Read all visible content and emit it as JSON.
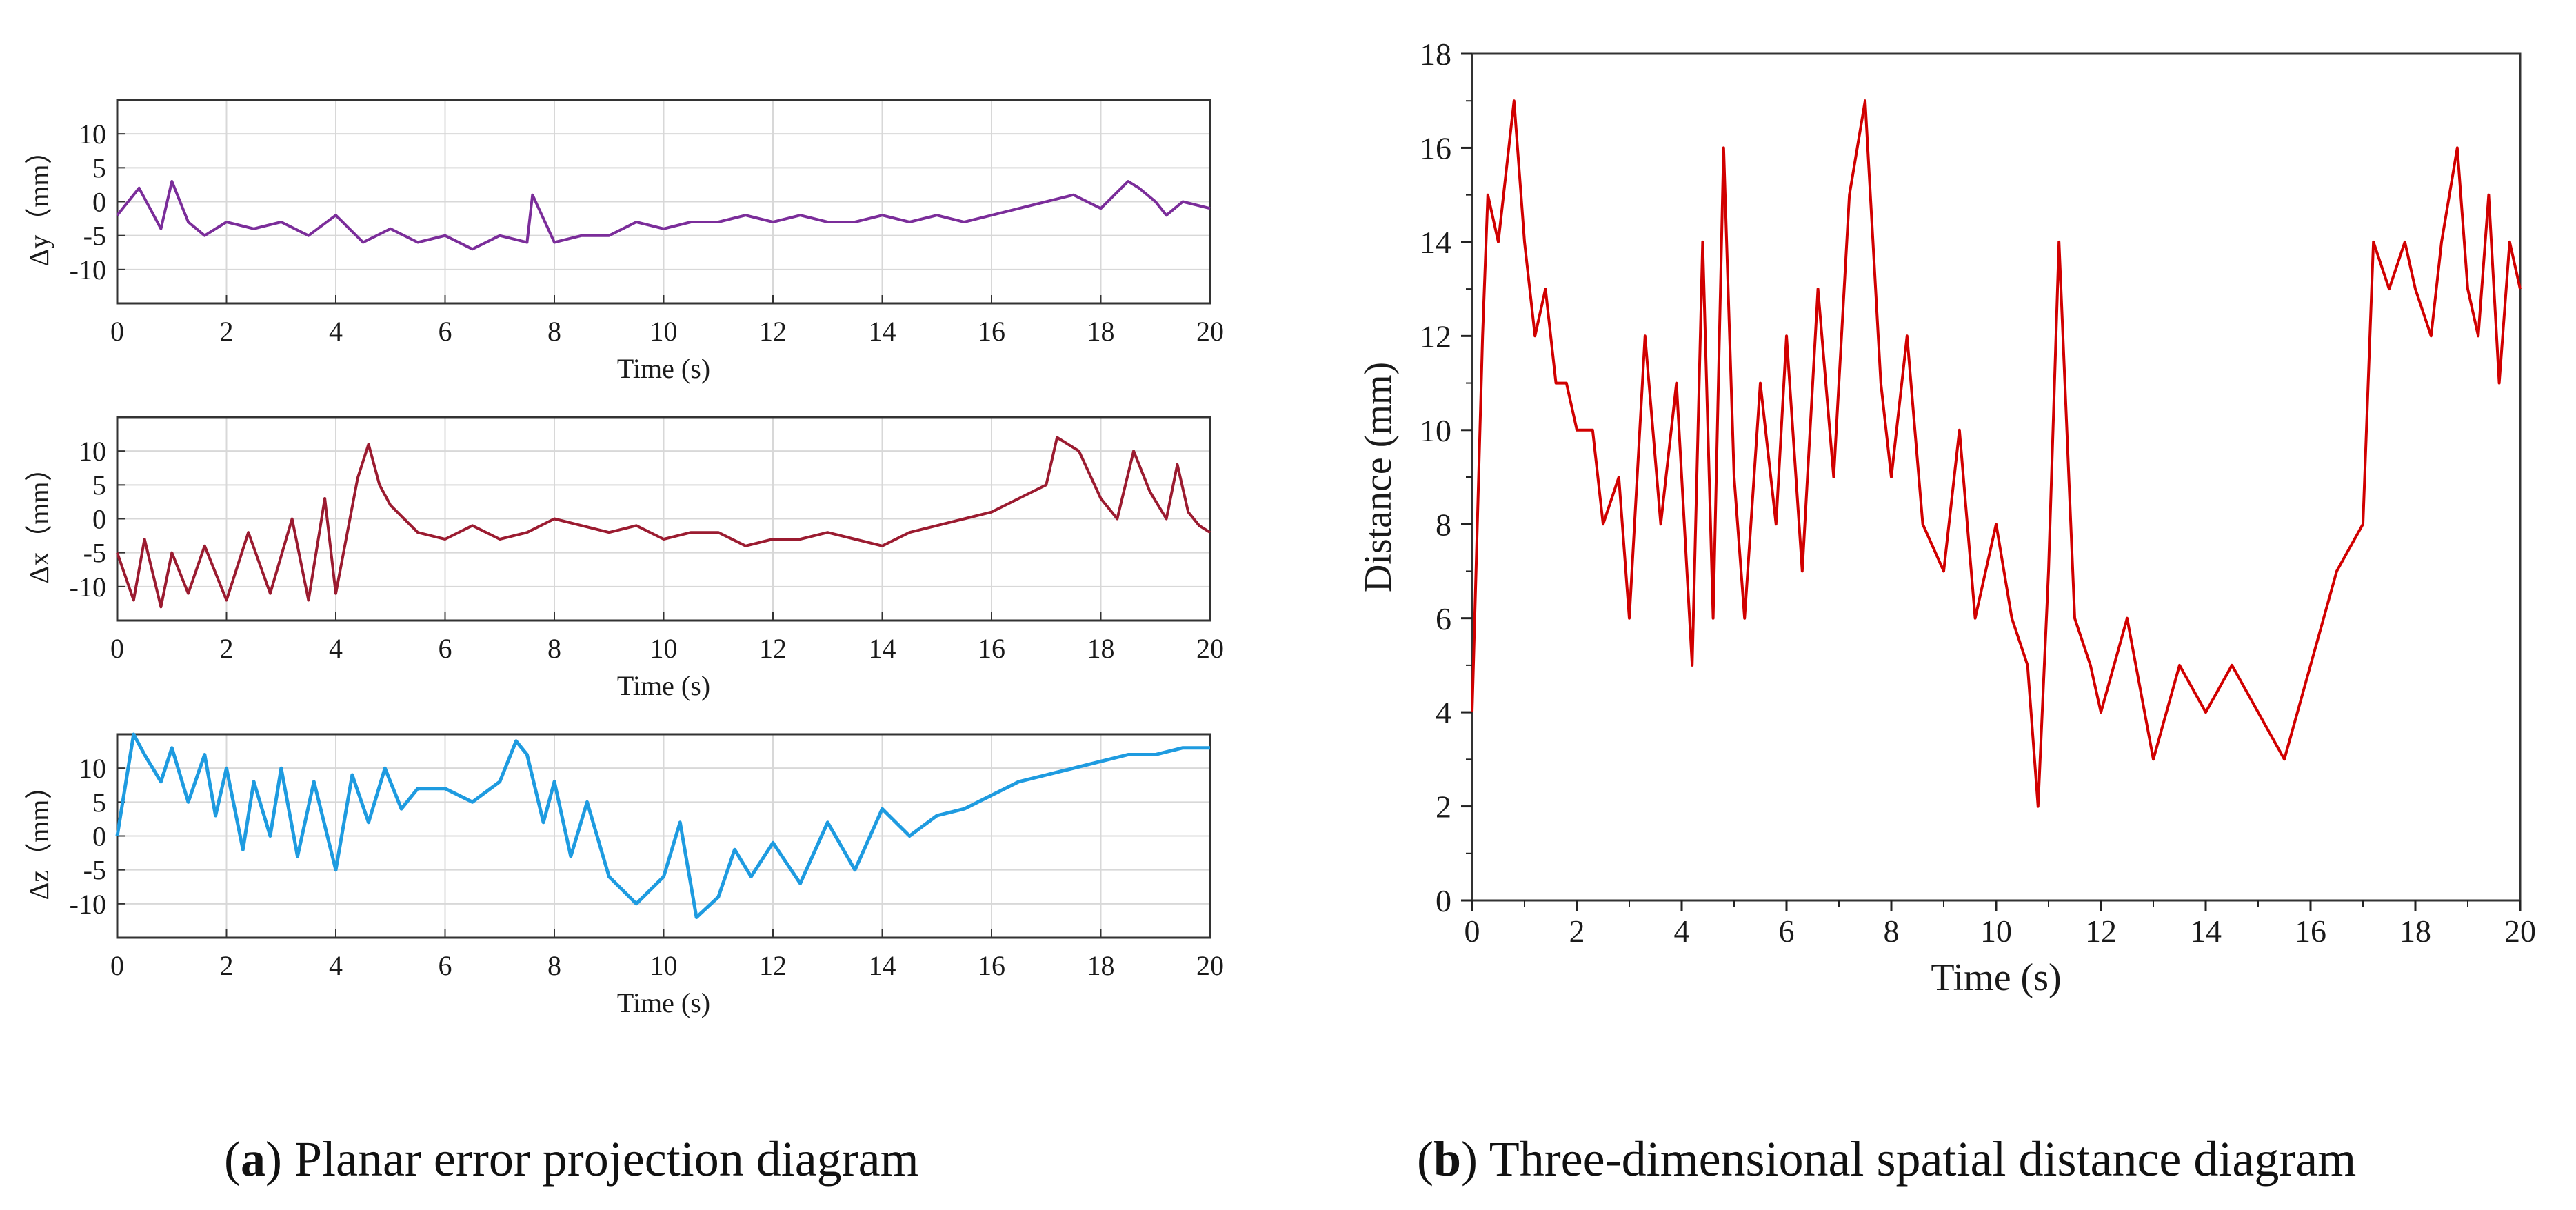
{
  "captions": {
    "a_letter": "a",
    "a_text": "Planar error projection diagram",
    "b_letter": "b",
    "b_text": "Three-dimensional spatial distance diagram"
  },
  "chart_data": [
    {
      "id": "dy",
      "type": "line",
      "title": "",
      "xlabel": "Time (s)",
      "ylabel": "Δy（mm）",
      "xlim": [
        0,
        20
      ],
      "ylim": [
        -15,
        15
      ],
      "xticks": [
        0,
        2,
        4,
        6,
        8,
        10,
        12,
        14,
        16,
        18,
        20
      ],
      "yticks": [
        -10,
        -5,
        0,
        5,
        10
      ],
      "grid": true,
      "color": "#7B2D9A",
      "series": [
        {
          "name": "Δy",
          "x": [
            0,
            0.4,
            0.6,
            0.8,
            1.0,
            1.3,
            1.6,
            2.0,
            2.5,
            3.0,
            3.5,
            4.0,
            4.5,
            5.0,
            5.5,
            6.0,
            6.5,
            7.0,
            7.5,
            7.6,
            8.0,
            8.5,
            9.0,
            9.5,
            10.0,
            10.5,
            11.0,
            11.5,
            12.0,
            12.5,
            13.0,
            13.5,
            14.0,
            14.5,
            15.0,
            15.5,
            16.0,
            16.5,
            17.0,
            17.5,
            18.0,
            18.5,
            18.7,
            19.0,
            19.2,
            19.5,
            20.0
          ],
          "y": [
            -2,
            2,
            -1,
            -4,
            3,
            -3,
            -5,
            -3,
            -4,
            -3,
            -5,
            -2,
            -6,
            -4,
            -6,
            -5,
            -7,
            -5,
            -6,
            1,
            -6,
            -5,
            -5,
            -3,
            -4,
            -3,
            -3,
            -2,
            -3,
            -2,
            -3,
            -3,
            -2,
            -3,
            -2,
            -3,
            -2,
            -1,
            0,
            1,
            -1,
            3,
            2,
            0,
            -2,
            0,
            -1
          ]
        }
      ]
    },
    {
      "id": "dx",
      "type": "line",
      "title": "",
      "xlabel": "Time (s)",
      "ylabel": "Δx（mm）",
      "xlim": [
        0,
        20
      ],
      "ylim": [
        -15,
        15
      ],
      "xticks": [
        0,
        2,
        4,
        6,
        8,
        10,
        12,
        14,
        16,
        18,
        20
      ],
      "yticks": [
        -10,
        -5,
        0,
        5,
        10
      ],
      "grid": true,
      "color": "#9B1B30",
      "series": [
        {
          "name": "Δx",
          "x": [
            0,
            0.3,
            0.5,
            0.8,
            1.0,
            1.3,
            1.6,
            2.0,
            2.4,
            2.8,
            3.2,
            3.5,
            3.8,
            4.0,
            4.4,
            4.6,
            4.8,
            5.0,
            5.5,
            6.0,
            6.5,
            7.0,
            7.5,
            8.0,
            8.5,
            9.0,
            9.5,
            10.0,
            10.5,
            11.0,
            11.5,
            12.0,
            12.5,
            13.0,
            13.5,
            14.0,
            14.5,
            15.0,
            15.5,
            16.0,
            16.5,
            17.0,
            17.2,
            17.6,
            18.0,
            18.3,
            18.6,
            18.9,
            19.2,
            19.4,
            19.6,
            19.8,
            20.0
          ],
          "y": [
            -5,
            -12,
            -3,
            -13,
            -5,
            -11,
            -4,
            -12,
            -2,
            -11,
            0,
            -12,
            3,
            -11,
            6,
            11,
            5,
            2,
            -2,
            -3,
            -1,
            -3,
            -2,
            0,
            -1,
            -2,
            -1,
            -3,
            -2,
            -2,
            -4,
            -3,
            -3,
            -2,
            -3,
            -4,
            -2,
            -1,
            0,
            1,
            3,
            5,
            12,
            10,
            3,
            0,
            10,
            4,
            0,
            8,
            1,
            -1,
            -2
          ]
        }
      ]
    },
    {
      "id": "dz",
      "type": "line",
      "title": "",
      "xlabel": "Time (s)",
      "ylabel": "Δz（mm）",
      "xlim": [
        0,
        20
      ],
      "ylim": [
        -15,
        15
      ],
      "xticks": [
        0,
        2,
        4,
        6,
        8,
        10,
        12,
        14,
        16,
        18,
        20
      ],
      "yticks": [
        -10,
        -5,
        0,
        5,
        10
      ],
      "grid": true,
      "color": "#1E9BE0",
      "series": [
        {
          "name": "Δz",
          "x": [
            0,
            0.3,
            0.5,
            0.8,
            1.0,
            1.3,
            1.6,
            1.8,
            2.0,
            2.3,
            2.5,
            2.8,
            3.0,
            3.3,
            3.6,
            4.0,
            4.3,
            4.6,
            4.9,
            5.2,
            5.5,
            6.0,
            6.5,
            7.0,
            7.3,
            7.5,
            7.8,
            8.0,
            8.3,
            8.6,
            9.0,
            9.5,
            10.0,
            10.3,
            10.6,
            11.0,
            11.3,
            11.6,
            12.0,
            12.5,
            13.0,
            13.5,
            14.0,
            14.5,
            15.0,
            15.5,
            16.0,
            16.5,
            17.0,
            17.5,
            18.0,
            18.5,
            19.0,
            19.5,
            20.0
          ],
          "y": [
            0,
            15,
            12,
            8,
            13,
            5,
            12,
            3,
            10,
            -2,
            8,
            0,
            10,
            -3,
            8,
            -5,
            9,
            2,
            10,
            4,
            7,
            7,
            5,
            8,
            14,
            12,
            2,
            8,
            -3,
            5,
            -6,
            -10,
            -6,
            2,
            -12,
            -9,
            -2,
            -6,
            -1,
            -7,
            2,
            -5,
            4,
            0,
            3,
            4,
            6,
            8,
            9,
            10,
            11,
            12,
            12,
            13,
            13
          ]
        }
      ]
    },
    {
      "id": "dist",
      "type": "line",
      "title": "",
      "xlabel": "Time (s)",
      "ylabel": "Distance (mm)",
      "xlim": [
        0,
        20
      ],
      "ylim": [
        0,
        18
      ],
      "xticks": [
        0,
        2,
        4,
        6,
        8,
        10,
        12,
        14,
        16,
        18,
        20
      ],
      "yticks": [
        0,
        2,
        4,
        6,
        8,
        10,
        12,
        14,
        16,
        18
      ],
      "grid": false,
      "color": "#D10000",
      "series": [
        {
          "name": "Distance",
          "x": [
            0,
            0.2,
            0.3,
            0.5,
            0.7,
            0.8,
            1.0,
            1.2,
            1.4,
            1.6,
            1.8,
            2.0,
            2.3,
            2.5,
            2.8,
            3.0,
            3.3,
            3.6,
            3.9,
            4.2,
            4.4,
            4.6,
            4.8,
            5.0,
            5.2,
            5.5,
            5.8,
            6.0,
            6.3,
            6.6,
            6.9,
            7.2,
            7.5,
            7.8,
            8.0,
            8.3,
            8.6,
            9.0,
            9.3,
            9.6,
            10.0,
            10.3,
            10.6,
            10.8,
            11.0,
            11.2,
            11.5,
            11.8,
            12.0,
            12.5,
            13.0,
            13.5,
            14.0,
            14.5,
            15.0,
            15.5,
            16.0,
            16.5,
            17.0,
            17.2,
            17.5,
            17.8,
            18.0,
            18.3,
            18.5,
            18.8,
            19.0,
            19.2,
            19.4,
            19.6,
            19.8,
            20.0
          ],
          "y": [
            4,
            12,
            15,
            14,
            16,
            17,
            14,
            12,
            13,
            11,
            11,
            10,
            10,
            8,
            9,
            6,
            12,
            8,
            11,
            5,
            14,
            6,
            16,
            9,
            6,
            11,
            8,
            12,
            7,
            13,
            9,
            15,
            17,
            11,
            9,
            12,
            8,
            7,
            10,
            6,
            8,
            6,
            5,
            2,
            7,
            14,
            6,
            5,
            4,
            6,
            3,
            5,
            4,
            5,
            4,
            3,
            5,
            7,
            8,
            14,
            13,
            14,
            13,
            12,
            14,
            16,
            13,
            12,
            15,
            11,
            14,
            13
          ]
        }
      ]
    }
  ]
}
